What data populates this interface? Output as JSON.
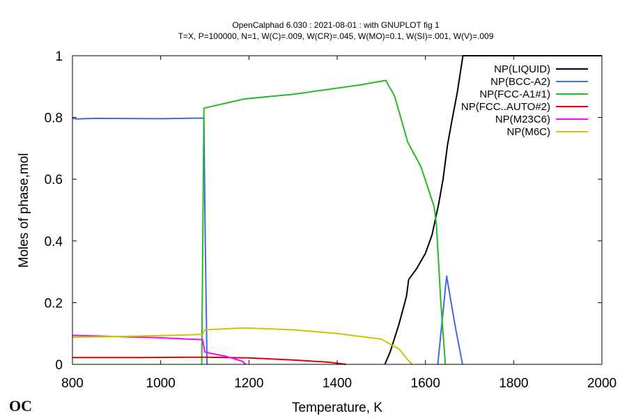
{
  "logo_text": "OC",
  "chart_data": {
    "type": "line",
    "title_lines": [
      "OpenCalphad    6.030 :  2021-08-01 : with GNUPLOT fig 1",
      "T=X,  P=100000, N=1, W(C)=.009, W(CR)=.045, W(MO)=0.1, W(SI)=.001, W(V)=.009"
    ],
    "xlabel": "Temperature, K",
    "ylabel": "Moles of phase,mol",
    "xlim": [
      800,
      2000
    ],
    "ylim": [
      0,
      1
    ],
    "xticks": [
      800,
      1000,
      1200,
      1400,
      1600,
      1800,
      2000
    ],
    "yticks": [
      0,
      0.2,
      0.4,
      0.6,
      0.8,
      1
    ],
    "legend_position": "top-right",
    "series": [
      {
        "name": "NP(LIQUID)",
        "color": "#000000",
        "points": [
          [
            1508,
            0
          ],
          [
            1520,
            0.04
          ],
          [
            1540,
            0.13
          ],
          [
            1557,
            0.22
          ],
          [
            1562,
            0.275
          ],
          [
            1580,
            0.31
          ],
          [
            1600,
            0.36
          ],
          [
            1615,
            0.42
          ],
          [
            1630,
            0.52
          ],
          [
            1640,
            0.6
          ],
          [
            1650,
            0.71
          ],
          [
            1660,
            0.79
          ],
          [
            1672,
            0.88
          ],
          [
            1685,
            1.0
          ],
          [
            2000,
            1.0
          ]
        ]
      },
      {
        "name": "NP(BCC-A2)",
        "color": "#4169e1",
        "points": [
          [
            800,
            0.797
          ],
          [
            810,
            0.795
          ],
          [
            850,
            0.797
          ],
          [
            1000,
            0.796
          ],
          [
            1098,
            0.798
          ],
          [
            1101,
            0.4
          ],
          [
            1105,
            0
          ]
        ],
        "extra_segments": [
          [
            [
              1628,
              0
            ],
            [
              1648,
              0.286
            ],
            [
              1668,
              0.12
            ],
            [
              1684,
              0
            ]
          ]
        ]
      },
      {
        "name": "NP(FCC-A1#1)",
        "color": "#22bb22",
        "points": [
          [
            1093,
            0
          ],
          [
            1098,
            0.83
          ],
          [
            1190,
            0.86
          ],
          [
            1300,
            0.875
          ],
          [
            1400,
            0.895
          ],
          [
            1450,
            0.905
          ],
          [
            1510,
            0.92
          ],
          [
            1530,
            0.87
          ],
          [
            1560,
            0.72
          ],
          [
            1590,
            0.64
          ],
          [
            1620,
            0.51
          ],
          [
            1625,
            0.45
          ],
          [
            1635,
            0.2
          ],
          [
            1645,
            0
          ]
        ]
      },
      {
        "name": "NP(FCC..AUTO#2)",
        "color": "#e00000",
        "points": [
          [
            800,
            0.022
          ],
          [
            950,
            0.022
          ],
          [
            1050,
            0.023
          ],
          [
            1100,
            0.023
          ],
          [
            1200,
            0.021
          ],
          [
            1300,
            0.014
          ],
          [
            1380,
            0.007
          ],
          [
            1420,
            0
          ]
        ]
      },
      {
        "name": "NP(M23C6)",
        "color": "#ff00ff",
        "points": [
          [
            800,
            0.094
          ],
          [
            900,
            0.09
          ],
          [
            1000,
            0.086
          ],
          [
            1095,
            0.08
          ],
          [
            1100,
            0.04
          ],
          [
            1150,
            0.025
          ],
          [
            1185,
            0.01
          ],
          [
            1193,
            0
          ]
        ]
      },
      {
        "name": "NP(M6C)",
        "color": "#c8c800",
        "points": [
          [
            800,
            0.088
          ],
          [
            900,
            0.09
          ],
          [
            1000,
            0.093
          ],
          [
            1095,
            0.097
          ],
          [
            1100,
            0.112
          ],
          [
            1190,
            0.118
          ],
          [
            1300,
            0.112
          ],
          [
            1400,
            0.1
          ],
          [
            1500,
            0.082
          ],
          [
            1540,
            0.05
          ],
          [
            1560,
            0.015
          ],
          [
            1570,
            0
          ]
        ]
      }
    ]
  }
}
